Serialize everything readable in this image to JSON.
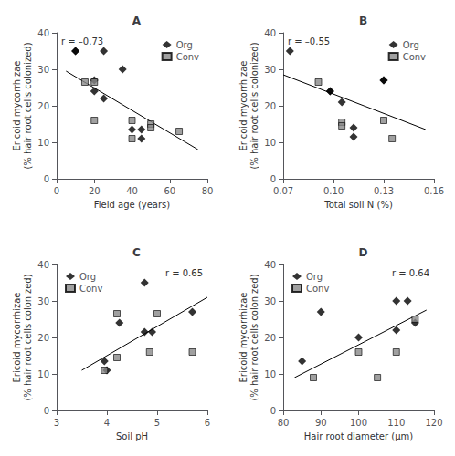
{
  "chart_data": [
    {
      "type": "scatter",
      "title": "A",
      "xlabel": "Field age (years)",
      "ylabel": "Ericoid mycorrhizae\n(% hair root cells colonized)",
      "xlim": [
        0,
        80
      ],
      "ylim": [
        0,
        40
      ],
      "xticks": [
        0,
        20,
        40,
        60,
        80
      ],
      "yticks": [
        0,
        10,
        20,
        30,
        40
      ],
      "grid": false,
      "legend": "upper right",
      "annotations": [
        "r = –0.73"
      ],
      "series": [
        {
          "name": "Org",
          "color": "#000000",
          "marker": "diamond",
          "x": [
            10,
            10,
            20,
            20,
            25,
            25,
            35,
            40,
            45,
            45
          ],
          "values": [
            35,
            35,
            27,
            24,
            22,
            35,
            30,
            13.5,
            13.5,
            11
          ]
        },
        {
          "name": "Conv",
          "color": "#888888",
          "marker": "square",
          "x": [
            15,
            20,
            20,
            40,
            40,
            50,
            50,
            65
          ],
          "values": [
            26.5,
            26.5,
            16,
            16,
            11,
            15,
            14,
            13
          ]
        },
        {
          "type": "line",
          "color": "#000000",
          "line_style": "solid",
          "x": [
            5,
            75
          ],
          "values": [
            29.5,
            8.0
          ]
        }
      ]
    },
    {
      "type": "scatter",
      "title": "B",
      "xlabel": "Total soil N (%)",
      "ylabel": "Ericoid mycorrhizae\n(% hair root cells colonized)",
      "xlim": [
        0.07,
        0.16
      ],
      "ylim": [
        0,
        40
      ],
      "xticks": [
        0.07,
        {
          "value": 0.1,
          "label": "0.10"
        },
        0.13,
        0.16
      ],
      "yticks": [
        0,
        10,
        20,
        30,
        40
      ],
      "grid": false,
      "legend": "upper right",
      "annotations": [
        "r = –0.55"
      ],
      "series": [
        {
          "name": "Org",
          "color": "#000000",
          "marker": "diamond",
          "x": [
            0.074,
            0.098,
            0.098,
            0.105,
            0.112,
            0.112,
            0.13,
            0.13
          ],
          "values": [
            35,
            24,
            24,
            21,
            14,
            11.5,
            27,
            27
          ]
        },
        {
          "name": "Conv",
          "color": "#888888",
          "marker": "square",
          "x": [
            0.091,
            0.105,
            0.105,
            0.13,
            0.135
          ],
          "values": [
            26.5,
            15.5,
            14.5,
            16,
            11
          ]
        },
        {
          "type": "line",
          "color": "#000000",
          "line_style": "solid",
          "x": [
            0.07,
            0.155
          ],
          "values": [
            28.5,
            13.5
          ]
        }
      ]
    },
    {
      "type": "scatter",
      "title": "C",
      "xlabel": "Soil pH",
      "ylabel": "Ericoid mycorrhizae\n(% hair root cells colonized)",
      "xlim": [
        3,
        6
      ],
      "ylim": [
        0,
        40
      ],
      "xticks": [
        3,
        4,
        5,
        6
      ],
      "yticks": [
        0,
        10,
        20,
        30,
        40
      ],
      "grid": false,
      "legend": "upper left",
      "annotations": [
        "r = 0.65"
      ],
      "series": [
        {
          "name": "Org",
          "color": "#000000",
          "marker": "diamond",
          "x": [
            3.95,
            4.0,
            4.25,
            4.75,
            4.75,
            4.9,
            5.7
          ],
          "values": [
            13.5,
            11,
            24,
            21.5,
            35,
            21.5,
            27
          ]
        },
        {
          "name": "Conv",
          "color": "#888888",
          "marker": "square",
          "x": [
            3.95,
            4.2,
            4.2,
            4.85,
            5.0,
            5.7
          ],
          "values": [
            11,
            26.5,
            14.5,
            16,
            26.5,
            16
          ]
        },
        {
          "type": "line",
          "color": "#000000",
          "line_style": "solid",
          "x": [
            3.5,
            6.0
          ],
          "values": [
            11.0,
            31.0
          ]
        }
      ]
    },
    {
      "type": "scatter",
      "title": "D",
      "xlabel": "Hair root diameter (μm)",
      "ylabel": "Ericoid mycorrhizae\n(% hair root cells colonized)",
      "xlim": [
        80,
        120
      ],
      "ylim": [
        0,
        40
      ],
      "xticks": [
        80,
        90,
        100,
        110,
        120
      ],
      "yticks": [
        0,
        10,
        20,
        30,
        40
      ],
      "grid": false,
      "legend": "upper left",
      "annotations": [
        "r = 0.64"
      ],
      "series": [
        {
          "name": "Org",
          "color": "#000000",
          "marker": "diamond",
          "x": [
            85,
            90,
            100,
            110,
            110,
            113,
            115
          ],
          "values": [
            13.5,
            27,
            20,
            22,
            30,
            30,
            24
          ]
        },
        {
          "name": "Conv",
          "color": "#888888",
          "marker": "square",
          "x": [
            88,
            100,
            105,
            110,
            115
          ],
          "values": [
            9,
            16,
            9,
            16,
            25
          ]
        },
        {
          "type": "line",
          "color": "#000000",
          "line_style": "solid",
          "x": [
            83,
            118
          ],
          "values": [
            9.0,
            27.5
          ]
        }
      ]
    }
  ]
}
